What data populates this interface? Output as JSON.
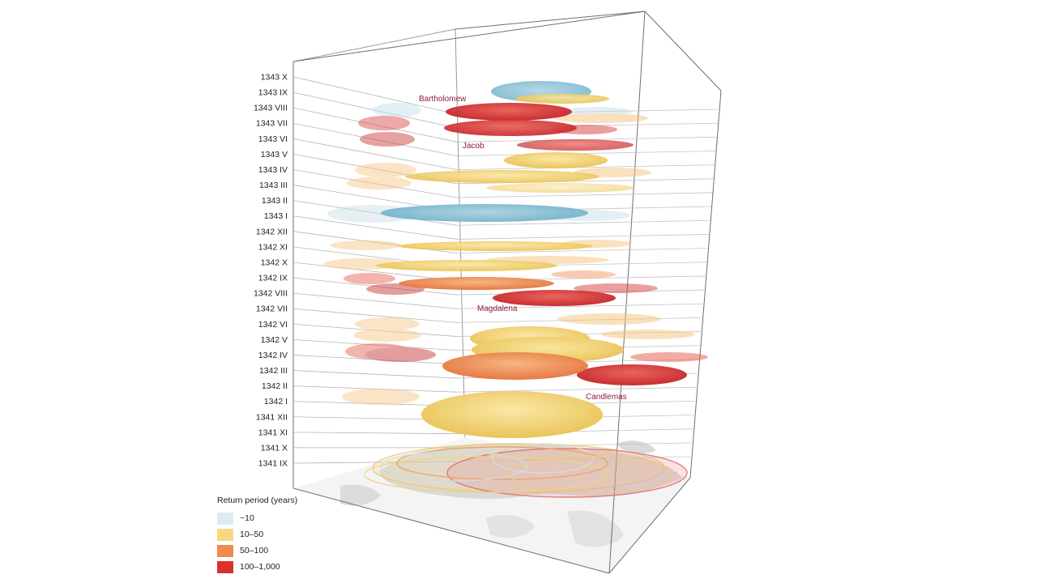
{
  "chart_data": {
    "type": "3d-stacked-ellipses",
    "title": "",
    "z_axis_labels": [
      "1343 X",
      "1343 IX",
      "1343 VIII",
      "1343 VII",
      "1343 VI",
      "1343 V",
      "1343 IV",
      "1343 III",
      "1343 II",
      "1343 I",
      "1342 XII",
      "1342 XI",
      "1342 X",
      "1342 IX",
      "1342 VIII",
      "1342 VII",
      "1342 VI",
      "1342 V",
      "1342 IV",
      "1342 III",
      "1342 II",
      "1342 I",
      "1341 XII",
      "1341 XI",
      "1341 X",
      "1341 IX"
    ],
    "annotations": [
      {
        "label": "Bartholomew",
        "month": "1343 VIII"
      },
      {
        "label": "Jacob",
        "month": "1343 VII"
      },
      {
        "label": "Magdalena",
        "month": "1342 VII"
      },
      {
        "label": "Candlemas",
        "month": "1342 II"
      }
    ],
    "legend": {
      "title": "Return period (years)",
      "placement": "bottom-left",
      "entries": [
        {
          "label": "~10",
          "color": "#dcebf1"
        },
        {
          "label": "10–50",
          "color": "#f7d77f"
        },
        {
          "label": "50–100",
          "color": "#f08a4f"
        },
        {
          "label": "100–1,000",
          "color": "#d9322b"
        }
      ]
    },
    "colors": {
      "~10": "#8fc3d6",
      "10-50": "#f3cf6a",
      "50-100": "#ee8a4e",
      "100-1000": "#d42f2c"
    }
  }
}
